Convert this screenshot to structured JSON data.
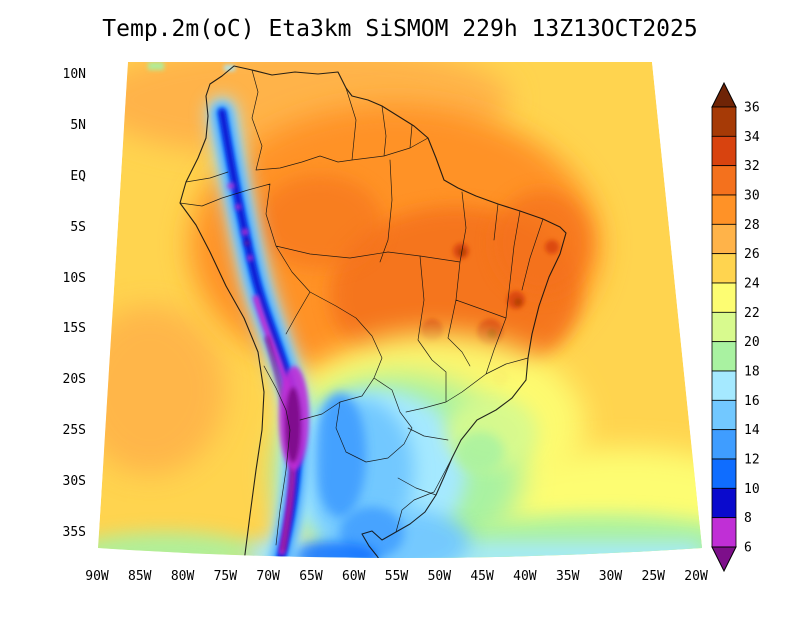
{
  "title": "Temp.2m(oC) Eta3km SiSMOM 229h 13Z13OCT2025",
  "axes": {
    "lat_ticks": [
      "10N",
      "5N",
      "EQ",
      "5S",
      "10S",
      "15S",
      "20S",
      "25S",
      "30S",
      "35S"
    ],
    "lon_ticks": [
      "90W",
      "85W",
      "80W",
      "75W",
      "70W",
      "65W",
      "60W",
      "55W",
      "50W",
      "45W",
      "40W",
      "35W",
      "30W",
      "25W",
      "20W"
    ]
  },
  "palette": {
    "below_6": "#7d0f8a",
    "t6_8": "#c02fd6",
    "t8_10": "#0a0acd",
    "t10_12": "#0f6dff",
    "t12_14": "#3f9dff",
    "t14_16": "#72c8ff",
    "t16_18": "#a5e9ff",
    "t18_20": "#a9f2a1",
    "t20_22": "#d8fa8e",
    "t22_24": "#fdfd72",
    "t24_26": "#ffd44f",
    "t26_28": "#ffb349",
    "t28_30": "#ff9227",
    "t30_32": "#f4711d",
    "t32_34": "#d8430f",
    "t34_36": "#a63a06",
    "above_36": "#6f2406",
    "border": "#101010"
  },
  "colorbar": {
    "tick_labels_top_to_bottom": [
      "36",
      "34",
      "32",
      "30",
      "28",
      "26",
      "24",
      "22",
      "20",
      "18",
      "16",
      "14",
      "12",
      "10",
      "8",
      "6"
    ],
    "order_top_to_bottom": [
      "above_36",
      "t34_36",
      "t32_34",
      "t30_32",
      "t28_30",
      "t26_28",
      "t24_26",
      "t22_24",
      "t20_22",
      "t18_20",
      "t16_18",
      "t14_16",
      "t12_14",
      "t10_12",
      "t8_10",
      "t6_8",
      "below_6"
    ]
  },
  "chart_data": {
    "type": "heatmap",
    "title": "Temp.2m(oC) Eta3km SiSMOM 229h 13Z13OCT2025",
    "variable": "Temp.2m",
    "units": "oC",
    "model": "Eta3km",
    "system": "SiSMOM",
    "forecast_hour": "229h",
    "valid_time": "13Z13OCT2025",
    "x_ticks": [
      "90W",
      "85W",
      "80W",
      "75W",
      "70W",
      "65W",
      "60W",
      "55W",
      "50W",
      "45W",
      "40W",
      "35W",
      "30W",
      "25W",
      "20W"
    ],
    "y_ticks": [
      "10N",
      "5N",
      "EQ",
      "5S",
      "10S",
      "15S",
      "20S",
      "25S",
      "30S",
      "35S"
    ],
    "levels_degC": [
      6,
      8,
      10,
      12,
      14,
      16,
      18,
      20,
      22,
      24,
      26,
      28,
      30,
      32,
      34,
      36
    ],
    "palette_low_to_high": [
      "#7d0f8a",
      "#c02fd6",
      "#0a0acd",
      "#0f6dff",
      "#3f9dff",
      "#72c8ff",
      "#a5e9ff",
      "#a9f2a1",
      "#d8fa8e",
      "#fdfd72",
      "#ffd44f",
      "#ffb349",
      "#ff9227",
      "#f4711d",
      "#d8430f",
      "#a63a06",
      "#6f2406"
    ],
    "legend_position": "right",
    "region_readings": [
      {
        "region": "Amazon basin and central Brazil (land)",
        "approx_degC": "28-32"
      },
      {
        "region": "Eastern interior Brazil hot spots",
        "approx_degC": "32-36"
      },
      {
        "region": "Andes cordillera (high terrain strip)",
        "approx_degC": "6-14"
      },
      {
        "region": "Altiplano (Bolivia) cold core",
        "approx_degC": "<6"
      },
      {
        "region": "Paraguay / N Argentina / S Brazil cool sector",
        "approx_degC": "14-20"
      },
      {
        "region": "Tropical Atlantic and Caribbean ocean",
        "approx_degC": "24-28"
      },
      {
        "region": "Subtropical South Atlantic (SE of Brazil)",
        "approx_degC": "20-24"
      },
      {
        "region": "Far southern ocean at bottom of domain",
        "approx_degC": "14-18"
      }
    ]
  }
}
